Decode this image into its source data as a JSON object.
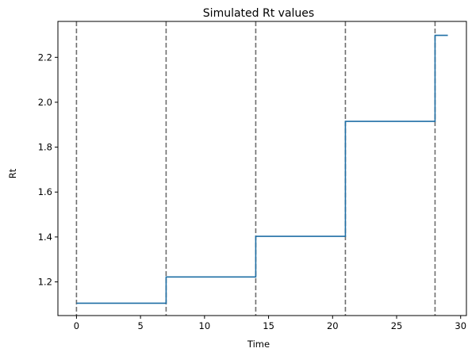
{
  "chart_data": {
    "type": "line",
    "title": "Simulated Rt values",
    "xlabel": "Time",
    "ylabel": "Rt",
    "xlim": [
      -1.45,
      30.45
    ],
    "ylim": [
      1.05,
      2.36
    ],
    "x_ticks": [
      0,
      5,
      10,
      15,
      20,
      25,
      30
    ],
    "y_ticks": [
      1.2,
      1.4,
      1.6,
      1.8,
      2.0,
      2.2
    ],
    "x_tick_labels": [
      "0",
      "5",
      "10",
      "15",
      "20",
      "25",
      "30"
    ],
    "y_tick_labels": [
      "1.2",
      "1.4",
      "1.6",
      "1.8",
      "2.0",
      "2.2"
    ],
    "grid": false,
    "series": [
      {
        "step": "post",
        "color": "#1f6fa5",
        "x": [
          0,
          7,
          14,
          21,
          28,
          29
        ],
        "y": [
          1.105,
          1.222,
          1.403,
          1.915,
          2.298,
          2.298
        ]
      }
    ],
    "vertical_lines": {
      "x": [
        0,
        7,
        14,
        21,
        28
      ],
      "color": "#6e6e6e",
      "style": "dashed"
    }
  }
}
